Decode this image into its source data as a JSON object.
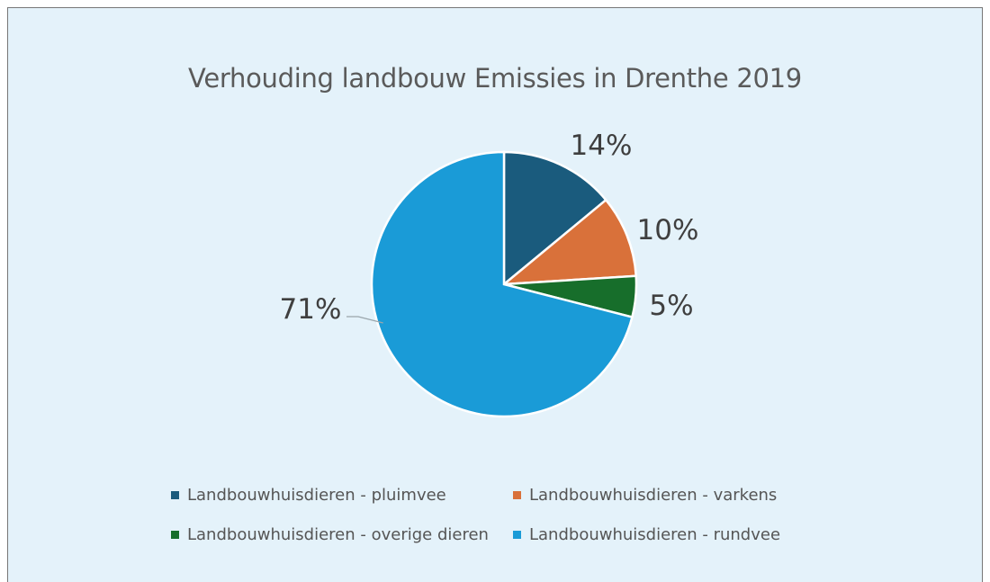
{
  "chart_data": {
    "type": "pie",
    "title": "Verhouding landbouw Emissies in Drenthe 2019",
    "slices": [
      {
        "name": "Landbouwhuisdieren - pluimvee",
        "value": 14,
        "label": "14%",
        "color": "#1a5b7d"
      },
      {
        "name": "Landbouwhuisdieren - varkens",
        "value": 10,
        "label": "10%",
        "color": "#d9713a"
      },
      {
        "name": "Landbouwhuisdieren - overige dieren",
        "value": 5,
        "label": "5%",
        "color": "#176e2b"
      },
      {
        "name": "Landbouwhuisdieren - rundvee",
        "value": 71,
        "label": "71%",
        "color": "#1a9bd7"
      }
    ],
    "legend_placement": "bottom"
  }
}
